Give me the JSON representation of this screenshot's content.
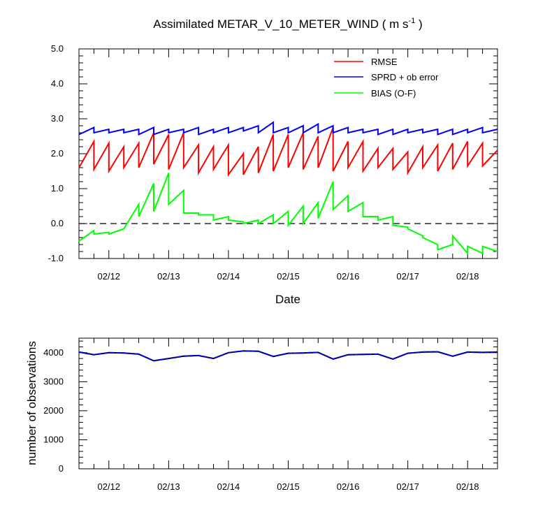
{
  "colors": {
    "rmse": "#ff0000",
    "spread": "#0000ff",
    "bias": "#00ff00",
    "obs_count": "#0000ff",
    "zero_line": "#000000"
  },
  "chart_data": [
    {
      "type": "line",
      "title_main": "Assimilated METAR_V_10_METER_WIND ( m s",
      "title_sup": "-1",
      "title_end": " )",
      "xlabel": "Date",
      "ylabel": "",
      "ylim": [
        -1.0,
        5.0
      ],
      "yticks": [
        "-1.0",
        "0.0",
        "1.0",
        "2.0",
        "3.0",
        "4.0",
        "5.0"
      ],
      "ytick_values": [
        -1,
        0,
        1,
        2,
        3,
        4,
        5
      ],
      "xlim": [
        "02/11 12:00",
        "02/18 12:00"
      ],
      "xticks": [
        "02/12",
        "02/13",
        "02/14",
        "02/15",
        "02/16",
        "02/17",
        "02/18"
      ],
      "xtick_values": [
        "02/12",
        "02/13",
        "02/14",
        "02/15",
        "02/16",
        "02/17",
        "02/18"
      ],
      "zero_line": true,
      "legend_position": "top-right",
      "series": [
        {
          "name": "RMSE",
          "color": "#ff0000",
          "x": [
            "02/11 12:00",
            "02/11 18:00",
            "02/11 18:00",
            "02/12 00:00",
            "02/12 00:00",
            "02/12 06:00",
            "02/12 06:00",
            "02/12 12:00",
            "02/12 12:00",
            "02/12 18:00",
            "02/12 18:00",
            "02/13 00:00",
            "02/13 00:00",
            "02/13 06:00",
            "02/13 06:00",
            "02/13 12:00",
            "02/13 12:00",
            "02/13 18:00",
            "02/13 18:00",
            "02/14 00:00",
            "02/14 00:00",
            "02/14 06:00",
            "02/14 06:00",
            "02/14 12:00",
            "02/14 12:00",
            "02/14 18:00",
            "02/14 18:00",
            "02/15 00:00",
            "02/15 00:00",
            "02/15 06:00",
            "02/15 06:00",
            "02/15 12:00",
            "02/15 12:00",
            "02/15 18:00",
            "02/15 18:00",
            "02/16 00:00",
            "02/16 00:00",
            "02/16 06:00",
            "02/16 06:00",
            "02/16 12:00",
            "02/16 12:00",
            "02/16 18:00",
            "02/16 18:00",
            "02/17 00:00",
            "02/17 00:00",
            "02/17 06:00",
            "02/17 06:00",
            "02/17 12:00",
            "02/17 12:00",
            "02/17 18:00",
            "02/17 18:00",
            "02/18 00:00",
            "02/18 00:00",
            "02/18 06:00",
            "02/18 06:00",
            "02/18 12:00"
          ],
          "values": [
            1.6,
            2.35,
            1.55,
            2.3,
            1.5,
            2.2,
            1.6,
            2.3,
            1.6,
            2.6,
            1.7,
            2.55,
            1.55,
            2.6,
            1.6,
            2.25,
            1.45,
            2.2,
            1.55,
            2.25,
            1.4,
            2.0,
            1.4,
            2.2,
            1.45,
            2.55,
            1.5,
            2.55,
            1.6,
            2.6,
            1.55,
            2.5,
            1.6,
            2.75,
            1.5,
            2.35,
            1.6,
            2.35,
            1.5,
            2.15,
            1.6,
            2.15,
            1.55,
            2.05,
            1.45,
            2.2,
            1.6,
            2.25,
            1.5,
            2.3,
            1.55,
            2.35,
            1.65,
            2.3,
            1.65,
            2.1
          ]
        },
        {
          "name": "SPRD + ob error",
          "color": "#0000ff",
          "x": [
            "02/11 12:00",
            "02/11 18:00",
            "02/11 18:00",
            "02/12 00:00",
            "02/12 00:00",
            "02/12 06:00",
            "02/12 06:00",
            "02/12 12:00",
            "02/12 12:00",
            "02/12 18:00",
            "02/12 18:00",
            "02/13 00:00",
            "02/13 00:00",
            "02/13 06:00",
            "02/13 06:00",
            "02/13 12:00",
            "02/13 12:00",
            "02/13 18:00",
            "02/13 18:00",
            "02/14 00:00",
            "02/14 00:00",
            "02/14 06:00",
            "02/14 06:00",
            "02/14 12:00",
            "02/14 12:00",
            "02/14 18:00",
            "02/14 18:00",
            "02/15 00:00",
            "02/15 00:00",
            "02/15 06:00",
            "02/15 06:00",
            "02/15 12:00",
            "02/15 12:00",
            "02/15 18:00",
            "02/15 18:00",
            "02/16 00:00",
            "02/16 00:00",
            "02/16 06:00",
            "02/16 06:00",
            "02/16 12:00",
            "02/16 12:00",
            "02/16 18:00",
            "02/16 18:00",
            "02/17 00:00",
            "02/17 00:00",
            "02/17 06:00",
            "02/17 06:00",
            "02/17 12:00",
            "02/17 12:00",
            "02/17 18:00",
            "02/17 18:00",
            "02/18 00:00",
            "02/18 00:00",
            "02/18 06:00",
            "02/18 06:00",
            "02/18 12:00"
          ],
          "values": [
            2.55,
            2.75,
            2.6,
            2.7,
            2.6,
            2.7,
            2.6,
            2.7,
            2.55,
            2.75,
            2.55,
            2.7,
            2.6,
            2.7,
            2.6,
            2.75,
            2.55,
            2.7,
            2.6,
            2.75,
            2.6,
            2.75,
            2.65,
            2.8,
            2.6,
            2.9,
            2.6,
            2.75,
            2.6,
            2.8,
            2.6,
            2.85,
            2.6,
            2.8,
            2.6,
            2.75,
            2.6,
            2.7,
            2.6,
            2.7,
            2.55,
            2.7,
            2.55,
            2.7,
            2.6,
            2.7,
            2.6,
            2.7,
            2.55,
            2.7,
            2.55,
            2.7,
            2.6,
            2.75,
            2.6,
            2.7
          ]
        },
        {
          "name": "BIAS (O-F)",
          "color": "#00ff00",
          "x": [
            "02/11 12:00",
            "02/11 18:00",
            "02/11 18:00",
            "02/12 00:00",
            "02/12 00:00",
            "02/12 06:00",
            "02/12 06:00",
            "02/12 12:00",
            "02/12 12:00",
            "02/12 18:00",
            "02/12 18:00",
            "02/13 00:00",
            "02/13 00:00",
            "02/13 06:00",
            "02/13 06:00",
            "02/13 12:00",
            "02/13 12:00",
            "02/13 18:00",
            "02/13 18:00",
            "02/14 00:00",
            "02/14 00:00",
            "02/14 06:00",
            "02/14 06:00",
            "02/14 12:00",
            "02/14 12:00",
            "02/14 18:00",
            "02/14 18:00",
            "02/15 00:00",
            "02/15 00:00",
            "02/15 06:00",
            "02/15 06:00",
            "02/15 12:00",
            "02/15 12:00",
            "02/15 18:00",
            "02/15 18:00",
            "02/16 00:00",
            "02/16 00:00",
            "02/16 06:00",
            "02/16 06:00",
            "02/16 12:00",
            "02/16 12:00",
            "02/16 18:00",
            "02/16 18:00",
            "02/17 00:00",
            "02/17 00:00",
            "02/17 06:00",
            "02/17 06:00",
            "02/17 12:00",
            "02/17 12:00",
            "02/17 18:00",
            "02/17 18:00",
            "02/18 00:00",
            "02/18 00:00",
            "02/18 06:00",
            "02/18 06:00",
            "02/18 12:00"
          ],
          "values": [
            -0.5,
            -0.2,
            -0.3,
            -0.25,
            -0.3,
            -0.15,
            -0.15,
            0.55,
            0.2,
            1.15,
            0.35,
            1.45,
            0.55,
            0.95,
            0.3,
            0.3,
            0.25,
            0.25,
            0.1,
            0.2,
            0.1,
            0.05,
            0.0,
            0.1,
            0.0,
            0.25,
            0.0,
            0.35,
            -0.05,
            0.5,
            0.0,
            0.6,
            0.15,
            1.2,
            0.4,
            0.8,
            0.35,
            0.6,
            0.2,
            0.2,
            0.1,
            0.2,
            -0.05,
            -0.1,
            -0.15,
            -0.35,
            -0.4,
            -0.6,
            -0.75,
            -0.6,
            -0.35,
            -0.85,
            -0.65,
            -0.85,
            -0.65,
            -0.8
          ]
        }
      ]
    },
    {
      "type": "line",
      "xlabel": "",
      "ylabel": "number of observations",
      "ylim": [
        0,
        4500
      ],
      "yticks": [
        "0",
        "1000",
        "2000",
        "3000",
        "4000"
      ],
      "ytick_values": [
        0,
        1000,
        2000,
        3000,
        4000
      ],
      "xlim": [
        "02/11 12:00",
        "02/18 12:00"
      ],
      "xticks": [
        "02/12",
        "02/13",
        "02/14",
        "02/15",
        "02/16",
        "02/17",
        "02/18"
      ],
      "xtick_values": [
        "02/12",
        "02/13",
        "02/14",
        "02/15",
        "02/16",
        "02/17",
        "02/18"
      ],
      "series": [
        {
          "color": "#0000ff",
          "dash": true,
          "x": [
            "02/11 12:00",
            "02/11 18:00",
            "02/12 00:00",
            "02/12 06:00",
            "02/12 12:00",
            "02/12 18:00",
            "02/13 00:00",
            "02/13 06:00",
            "02/13 12:00",
            "02/13 18:00",
            "02/14 00:00",
            "02/14 06:00",
            "02/14 12:00",
            "02/14 18:00",
            "02/15 00:00",
            "02/15 06:00",
            "02/15 12:00",
            "02/15 18:00",
            "02/16 00:00",
            "02/16 06:00",
            "02/16 12:00",
            "02/16 18:00",
            "02/17 00:00",
            "02/17 06:00",
            "02/17 12:00",
            "02/17 18:00",
            "02/18 00:00",
            "02/18 06:00",
            "02/18 12:00"
          ],
          "values": [
            4020,
            3930,
            4000,
            3990,
            3950,
            3720,
            3800,
            3880,
            3900,
            3800,
            4000,
            4060,
            4050,
            3870,
            3980,
            3990,
            4010,
            3780,
            3930,
            3940,
            3950,
            3780,
            3980,
            4020,
            4030,
            3880,
            4020,
            4010,
            4020
          ]
        }
      ]
    }
  ]
}
